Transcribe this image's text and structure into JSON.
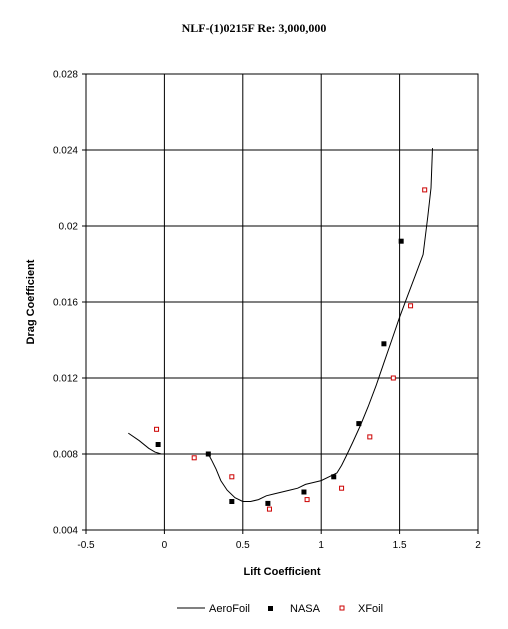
{
  "chart_data": {
    "type": "scatter",
    "title": "NLF-(1)0215F  Re: 3,000,000",
    "xlabel": "Lift Coefficient",
    "ylabel": "Drag Coefficient",
    "xlim": [
      -0.5,
      2
    ],
    "ylim": [
      0.004,
      0.028
    ],
    "xticks": [
      -0.5,
      0,
      0.5,
      1,
      1.5,
      2
    ],
    "xtick_labels": [
      "-0.5",
      "0",
      "0.5",
      "1",
      "1.5",
      "2"
    ],
    "yticks": [
      0.004,
      0.008,
      0.012,
      0.016,
      0.02,
      0.024,
      0.028
    ],
    "ytick_labels": [
      "0.004",
      "0.008",
      "0.012",
      "0.016",
      "0.02",
      "0.024",
      "0.028"
    ],
    "grid": true,
    "legend_position": "bottom",
    "series": [
      {
        "name": "AeroFoil",
        "style": "line",
        "color": "#000000",
        "x": [
          -0.23,
          -0.16,
          -0.1,
          -0.06,
          -0.02,
          0.05,
          0.12,
          0.2,
          0.28,
          0.3,
          0.33,
          0.36,
          0.4,
          0.45,
          0.5,
          0.55,
          0.6,
          0.65,
          0.7,
          0.75,
          0.8,
          0.85,
          0.9,
          0.95,
          1.0,
          1.05,
          1.1,
          1.13,
          1.16,
          1.2,
          1.25,
          1.3,
          1.35,
          1.4,
          1.45,
          1.5,
          1.55,
          1.6,
          1.65,
          1.68,
          1.7,
          1.71
        ],
        "y": [
          0.0091,
          0.0087,
          0.0083,
          0.0081,
          0.008,
          0.008,
          0.008,
          0.008,
          0.008,
          0.0077,
          0.0072,
          0.0066,
          0.0061,
          0.0057,
          0.0055,
          0.0055,
          0.0056,
          0.0058,
          0.0059,
          0.006,
          0.0061,
          0.0062,
          0.0064,
          0.0065,
          0.0066,
          0.0068,
          0.007,
          0.0074,
          0.0079,
          0.0086,
          0.0095,
          0.0105,
          0.0116,
          0.0128,
          0.014,
          0.0152,
          0.0163,
          0.0174,
          0.0185,
          0.0205,
          0.022,
          0.0241
        ]
      },
      {
        "name": "NASA",
        "style": "marker-filled-square",
        "color": "#000000",
        "x": [
          -0.04,
          0.28,
          0.43,
          0.66,
          0.89,
          1.08,
          1.24,
          1.4,
          1.51
        ],
        "y": [
          0.0085,
          0.008,
          0.0055,
          0.0054,
          0.006,
          0.0068,
          0.0096,
          0.0138,
          0.0192
        ]
      },
      {
        "name": "XFoil",
        "style": "marker-open-square",
        "color": "#cc0000",
        "x": [
          -0.05,
          0.19,
          0.43,
          0.67,
          0.91,
          1.13,
          1.31,
          1.46,
          1.57,
          1.66
        ],
        "y": [
          0.0093,
          0.0078,
          0.0068,
          0.0051,
          0.0056,
          0.0062,
          0.0089,
          0.012,
          0.0158,
          0.0219
        ]
      }
    ]
  }
}
